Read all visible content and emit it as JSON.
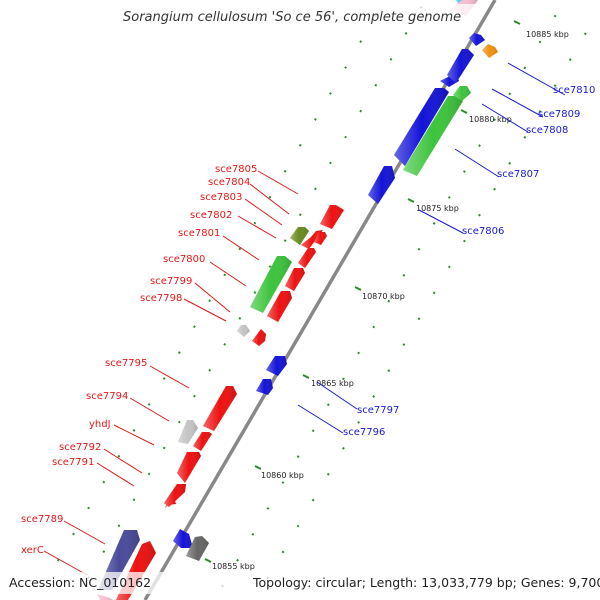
{
  "title": "Sorangium cellulosum 'So ce 56', complete genome",
  "footer": {
    "accession": "Accession: NC_010162",
    "summary": "Topology: circular; Length: 13,033,779 bp; Genes: 9,700"
  },
  "colors": {
    "backbone": "#888888",
    "minus_strand_label": "#e01818",
    "plus_strand_label": "#1a1ad0",
    "tick_green": "#2a8a2a",
    "red_feature": "#ee1111",
    "blue_feature": "#1414d8",
    "green_feature": "#3cc43c",
    "olive_feature": "#6a8a1e",
    "gray_feature": "#bdbdbd",
    "darkgray_feature": "#666666",
    "purple_feature": "#4a4a9a",
    "orange_feature": "#f09010"
  },
  "ticks": [
    {
      "label": "10855 kbp"
    },
    {
      "label": "10860 kbp"
    },
    {
      "label": "10865 kbp"
    },
    {
      "label": "10870 kbp"
    },
    {
      "label": "10875 kbp"
    },
    {
      "label": "10880 kbp"
    },
    {
      "label": "10885 kbp"
    }
  ],
  "labels_left": [
    {
      "text": "sce7805"
    },
    {
      "text": "sce7804"
    },
    {
      "text": "sce7803"
    },
    {
      "text": "sce7802"
    },
    {
      "text": "sce7801"
    },
    {
      "text": "sce7800"
    },
    {
      "text": "sce7799"
    },
    {
      "text": "sce7798"
    },
    {
      "text": "sce7795"
    },
    {
      "text": "sce7794"
    },
    {
      "text": "yhdJ"
    },
    {
      "text": "sce7792"
    },
    {
      "text": "sce7791"
    },
    {
      "text": "sce7789"
    },
    {
      "text": "xerC"
    }
  ],
  "labels_right": [
    {
      "text": "sce7810"
    },
    {
      "text": "sce7809"
    },
    {
      "text": "sce7808"
    },
    {
      "text": "sce7807"
    },
    {
      "text": "sce7806"
    },
    {
      "text": "sce7797"
    },
    {
      "text": "sce7796"
    }
  ]
}
